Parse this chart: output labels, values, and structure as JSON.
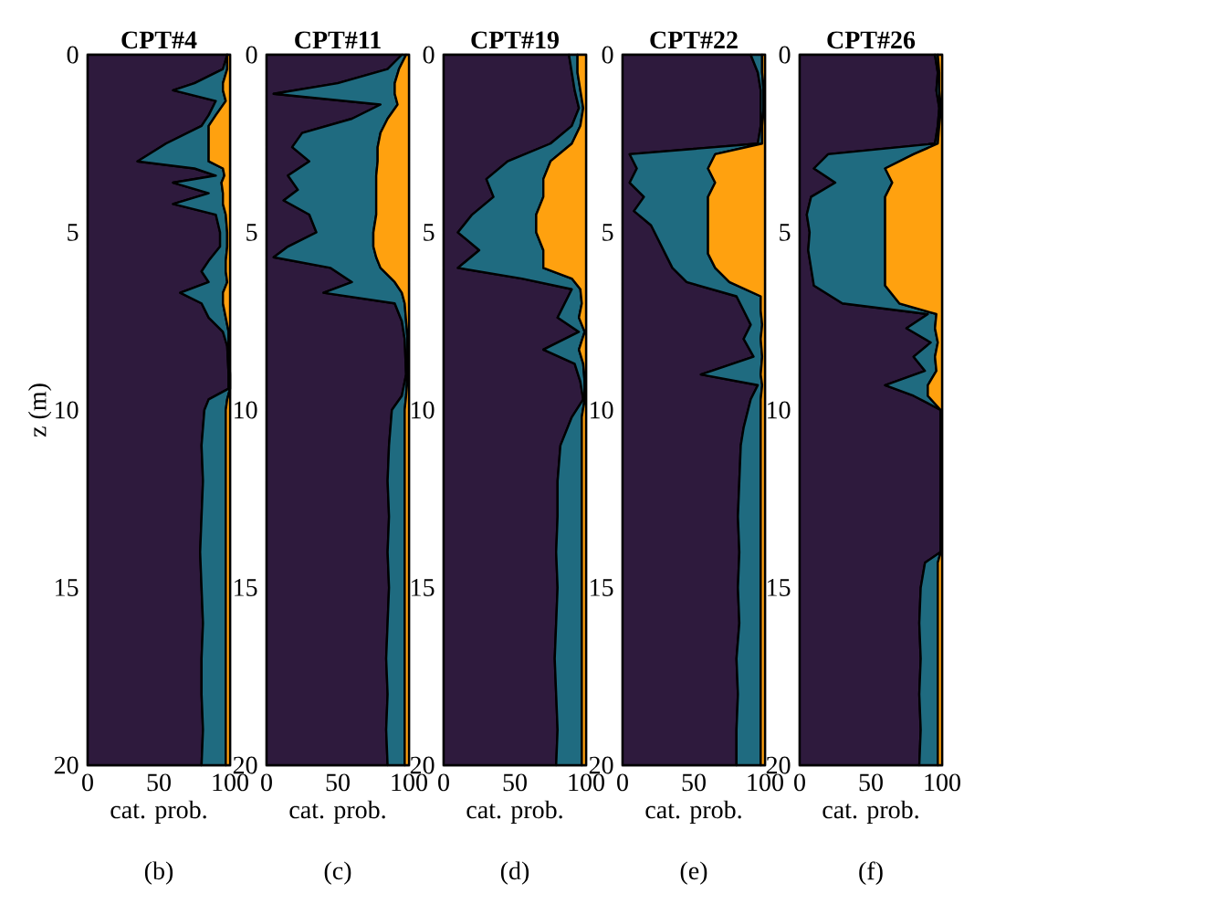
{
  "chart_data": [
    {
      "type": "area",
      "stacked": true,
      "orientation": "horizontal",
      "title": "CPT#4",
      "xlabel": "cat. prob.",
      "ylabel": "z (m)",
      "annotations": [
        "(b)"
      ],
      "xlim": [
        0,
        100
      ],
      "xticks": [
        0,
        50,
        100
      ],
      "ylim": [
        20,
        0
      ],
      "yticks": [
        0,
        5,
        10,
        15,
        20
      ],
      "x": [
        0,
        0.4,
        0.8,
        1.0,
        1.3,
        1.7,
        2.0,
        2.5,
        3.0,
        3.2,
        3.4,
        3.6,
        3.9,
        4.2,
        4.5,
        5.0,
        5.4,
        5.8,
        6.1,
        6.4,
        6.7,
        7.0,
        7.4,
        7.8,
        8.2,
        9.0,
        9.4,
        9.7,
        10,
        11,
        12,
        13,
        14,
        15,
        16,
        17,
        18,
        19,
        20
      ],
      "series": [
        {
          "color": "#2e1a3d",
          "values": [
            98,
            95,
            75,
            60,
            90,
            85,
            80,
            55,
            35,
            75,
            90,
            60,
            85,
            60,
            90,
            93,
            93,
            85,
            80,
            85,
            65,
            80,
            85,
            95,
            98,
            99,
            99,
            85,
            82,
            80,
            81,
            80,
            79,
            80,
            81,
            80,
            80,
            81,
            80
          ]
        },
        {
          "color": "#1f6b80",
          "values": [
            0,
            3,
            20,
            35,
            7,
            5,
            5,
            30,
            50,
            20,
            6,
            34,
            10,
            35,
            7,
            5,
            5,
            12,
            17,
            13,
            30,
            15,
            12,
            4,
            1,
            1,
            1,
            13,
            15,
            17,
            16,
            17,
            18,
            17,
            16,
            17,
            17,
            16,
            17
          ]
        },
        {
          "color": "#ffa10f",
          "values": [
            2,
            2,
            5,
            5,
            3,
            10,
            15,
            15,
            15,
            5,
            4,
            6,
            5,
            5,
            3,
            2,
            2,
            3,
            3,
            2,
            5,
            5,
            3,
            1,
            1,
            0,
            0,
            2,
            3,
            3,
            3,
            3,
            3,
            3,
            3,
            3,
            3,
            3,
            3
          ]
        }
      ]
    },
    {
      "type": "area",
      "stacked": true,
      "orientation": "horizontal",
      "title": "CPT#11",
      "xlabel": "cat. prob.",
      "annotations": [
        "(c)"
      ],
      "xlim": [
        0,
        100
      ],
      "xticks": [
        0,
        50,
        100
      ],
      "ylim": [
        20,
        0
      ],
      "yticks": [
        0,
        5,
        10,
        15,
        20
      ],
      "x": [
        0,
        0.4,
        0.8,
        1.1,
        1.4,
        1.8,
        2.2,
        2.6,
        3.0,
        3.4,
        3.8,
        4.1,
        4.5,
        5.0,
        5.4,
        5.7,
        6.0,
        6.4,
        6.7,
        7.0,
        7.5,
        8.0,
        9.0,
        9.6,
        10,
        11,
        12,
        13,
        14,
        15,
        16,
        17,
        18,
        19,
        20
      ],
      "series": [
        {
          "color": "#2e1a3d",
          "values": [
            95,
            85,
            50,
            5,
            80,
            60,
            25,
            18,
            30,
            15,
            22,
            12,
            30,
            35,
            15,
            5,
            45,
            60,
            40,
            90,
            95,
            97,
            98,
            95,
            88,
            86,
            85,
            86,
            85,
            86,
            85,
            84,
            85,
            84,
            85
          ]
        },
        {
          "color": "#1f6b80",
          "values": [
            3,
            8,
            40,
            85,
            12,
            25,
            55,
            60,
            48,
            62,
            55,
            65,
            47,
            40,
            60,
            72,
            35,
            30,
            55,
            7,
            3,
            2,
            1,
            3,
            9,
            11,
            12,
            11,
            12,
            11,
            12,
            13,
            12,
            13,
            12
          ]
        },
        {
          "color": "#ffa10f",
          "values": [
            2,
            7,
            10,
            10,
            8,
            15,
            20,
            22,
            22,
            23,
            23,
            23,
            23,
            25,
            25,
            23,
            20,
            10,
            5,
            3,
            2,
            1,
            1,
            2,
            3,
            3,
            3,
            3,
            3,
            3,
            3,
            3,
            3,
            3,
            3
          ]
        }
      ]
    },
    {
      "type": "area",
      "stacked": true,
      "orientation": "horizontal",
      "title": "CPT#19",
      "xlabel": "cat. prob.",
      "annotations": [
        "(d)"
      ],
      "xlim": [
        0,
        100
      ],
      "xticks": [
        0,
        50,
        100
      ],
      "ylim": [
        20,
        0
      ],
      "yticks": [
        0,
        5,
        10,
        15,
        20
      ],
      "x": [
        0,
        0.5,
        1,
        1.5,
        2,
        2.5,
        3,
        3.5,
        4,
        4.5,
        5,
        5.5,
        6,
        6.3,
        6.6,
        7,
        7.4,
        7.8,
        8.3,
        8.7,
        9.2,
        9.7,
        10.2,
        11,
        12,
        13,
        14,
        15,
        16,
        17,
        18,
        19,
        20
      ],
      "series": [
        {
          "color": "#2e1a3d",
          "values": [
            88,
            90,
            92,
            95,
            90,
            75,
            45,
            30,
            35,
            20,
            10,
            25,
            10,
            55,
            90,
            85,
            80,
            95,
            70,
            92,
            96,
            98,
            90,
            82,
            80,
            80,
            79,
            80,
            79,
            78,
            79,
            80,
            79
          ]
        },
        {
          "color": "#1f6b80",
          "values": [
            6,
            4,
            4,
            3,
            6,
            15,
            30,
            40,
            35,
            45,
            55,
            45,
            60,
            35,
            6,
            12,
            15,
            4,
            25,
            6,
            3,
            1,
            7,
            15,
            17,
            17,
            18,
            17,
            18,
            19,
            18,
            17,
            18
          ]
        },
        {
          "color": "#ffa10f",
          "values": [
            6,
            6,
            4,
            2,
            4,
            10,
            25,
            30,
            30,
            35,
            35,
            30,
            30,
            10,
            4,
            3,
            5,
            1,
            5,
            2,
            1,
            1,
            3,
            3,
            3,
            3,
            3,
            3,
            3,
            3,
            3,
            3,
            3
          ]
        }
      ]
    },
    {
      "type": "area",
      "stacked": true,
      "orientation": "horizontal",
      "title": "CPT#22",
      "xlabel": "cat. prob.",
      "annotations": [
        "(e)"
      ],
      "xlim": [
        0,
        100
      ],
      "xticks": [
        0,
        50,
        100
      ],
      "ylim": [
        20,
        0
      ],
      "yticks": [
        0,
        5,
        10,
        15,
        20
      ],
      "x": [
        0,
        0.5,
        1,
        1.5,
        2,
        2.5,
        2.8,
        3.2,
        3.6,
        4,
        4.4,
        4.8,
        5.2,
        5.6,
        6,
        6.4,
        6.8,
        7.2,
        7.6,
        8,
        8.5,
        9.0,
        9.3,
        9.7,
        10.5,
        11,
        12,
        13,
        14,
        15,
        16,
        17,
        18,
        19,
        20
      ],
      "series": [
        {
          "color": "#2e1a3d",
          "values": [
            90,
            95,
            97,
            97,
            97,
            95,
            5,
            10,
            5,
            15,
            8,
            20,
            25,
            30,
            35,
            45,
            80,
            85,
            90,
            85,
            92,
            55,
            95,
            90,
            85,
            83,
            82,
            81,
            82,
            81,
            82,
            80,
            81,
            80,
            80
          ]
        },
        {
          "color": "#1f6b80",
          "values": [
            8,
            3,
            2,
            2,
            1,
            3,
            60,
            50,
            60,
            45,
            52,
            40,
            35,
            30,
            30,
            30,
            17,
            12,
            8,
            12,
            6,
            42,
            3,
            7,
            12,
            14,
            15,
            16,
            15,
            16,
            15,
            17,
            16,
            17,
            17
          ]
        },
        {
          "color": "#ffa10f",
          "values": [
            2,
            2,
            1,
            1,
            2,
            2,
            35,
            40,
            35,
            40,
            40,
            40,
            40,
            40,
            35,
            25,
            3,
            3,
            2,
            3,
            2,
            3,
            2,
            3,
            3,
            3,
            3,
            3,
            3,
            3,
            3,
            3,
            3,
            3,
            3
          ]
        }
      ]
    },
    {
      "type": "area",
      "stacked": true,
      "orientation": "horizontal",
      "title": "CPT#26",
      "xlabel": "cat. prob.",
      "annotations": [
        "(f)"
      ],
      "xlim": [
        0,
        100
      ],
      "xticks": [
        0,
        50,
        100
      ],
      "ylim": [
        20,
        0
      ],
      "yticks": [
        0,
        5,
        10,
        15,
        20
      ],
      "x": [
        0,
        0.5,
        1,
        1.5,
        2,
        2.5,
        2.8,
        3.2,
        3.6,
        4,
        4.5,
        5,
        5.5,
        6,
        6.5,
        7,
        7.3,
        7.7,
        8.1,
        8.5,
        8.9,
        9.3,
        9.6,
        10,
        11,
        12,
        13,
        14,
        14.3,
        15,
        16,
        17,
        18,
        19,
        20
      ],
      "series": [
        {
          "color": "#2e1a3d",
          "values": [
            95,
            97,
            96,
            98,
            97,
            95,
            20,
            10,
            25,
            8,
            5,
            7,
            6,
            8,
            10,
            30,
            90,
            75,
            92,
            80,
            88,
            60,
            80,
            99,
            99,
            99,
            99,
            99,
            88,
            85,
            84,
            85,
            84,
            85,
            84
          ]
        },
        {
          "color": "#1f6b80",
          "values": [
            2,
            1,
            2,
            1,
            1,
            2,
            60,
            50,
            40,
            52,
            55,
            53,
            54,
            52,
            50,
            40,
            6,
            20,
            5,
            15,
            8,
            30,
            10,
            0,
            0,
            0,
            0,
            0,
            9,
            12,
            13,
            12,
            13,
            12,
            13
          ]
        },
        {
          "color": "#ffa10f",
          "values": [
            3,
            2,
            2,
            1,
            2,
            3,
            20,
            40,
            35,
            40,
            40,
            40,
            40,
            40,
            40,
            30,
            4,
            5,
            3,
            5,
            4,
            10,
            10,
            1,
            1,
            1,
            1,
            1,
            3,
            3,
            3,
            3,
            3,
            3,
            3
          ]
        }
      ]
    }
  ]
}
